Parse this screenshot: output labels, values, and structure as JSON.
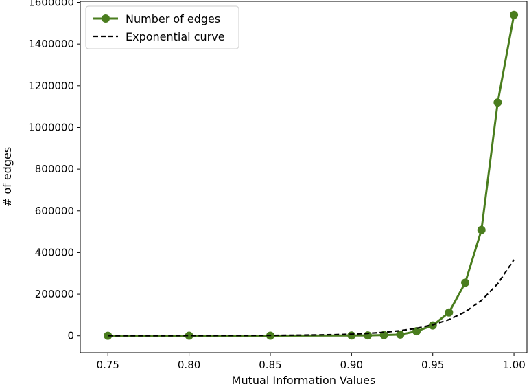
{
  "chart_data": {
    "type": "line",
    "title": "",
    "xlabel": "Mutual Information Values",
    "ylabel": "# of edges",
    "xlim": [
      0.733,
      1.008
    ],
    "ylim": [
      -80000,
      1605000
    ],
    "x_ticks": [
      0.75,
      0.8,
      0.85,
      0.9,
      0.95,
      1.0
    ],
    "x_tick_labels": [
      "0.75",
      "0.80",
      "0.85",
      "0.90",
      "0.95",
      "1.00"
    ],
    "y_ticks": [
      0,
      200000,
      400000,
      600000,
      800000,
      1000000,
      1200000,
      1400000,
      1600000
    ],
    "y_tick_labels": [
      "0",
      "200000",
      "400000",
      "600000",
      "800000",
      "1000000",
      "1200000",
      "1400000",
      "1600000"
    ],
    "grid": false,
    "legend_position": "top-left",
    "series": [
      {
        "name": "Number of edges",
        "style": "solid-line-with-markers",
        "color": "#4a7d1e",
        "x": [
          0.75,
          0.8,
          0.85,
          0.9,
          0.91,
          0.92,
          0.93,
          0.94,
          0.95,
          0.96,
          0.97,
          0.98,
          0.99,
          1.0
        ],
        "values": [
          500,
          600,
          800,
          1500,
          2000,
          3500,
          6000,
          22000,
          50000,
          112000,
          255000,
          508000,
          1120000,
          1540000
        ]
      },
      {
        "name": "Exponential curve",
        "style": "dashed-line",
        "color": "#000000",
        "x": [
          0.75,
          0.8,
          0.85,
          0.87,
          0.89,
          0.9,
          0.91,
          0.92,
          0.93,
          0.94,
          0.95,
          0.96,
          0.97,
          0.98,
          0.99,
          1.0
        ],
        "values": [
          500,
          1000,
          2000,
          3500,
          6000,
          8000,
          12000,
          17000,
          25000,
          36000,
          53000,
          78000,
          115000,
          170000,
          250000,
          365000
        ]
      }
    ]
  }
}
